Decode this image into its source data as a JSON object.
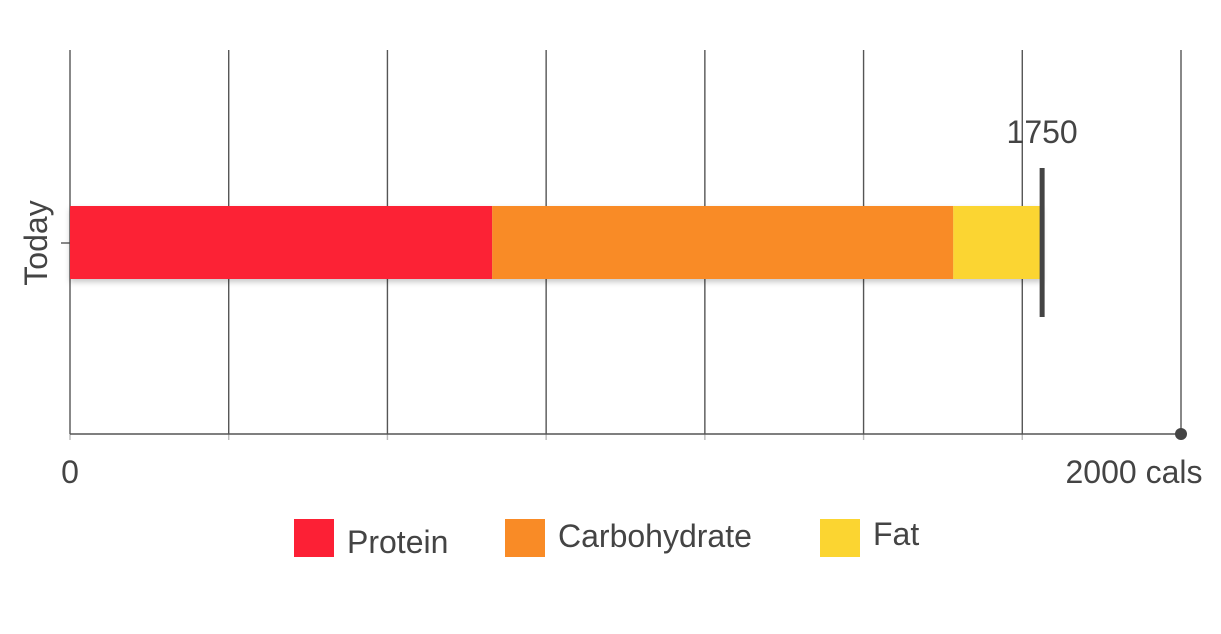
{
  "chart_data": {
    "type": "bar",
    "orientation": "horizontal",
    "stacked": true,
    "categories": [
      "Today"
    ],
    "series": [
      {
        "name": "Protein",
        "color": "#fc2035",
        "values": [
          760
        ]
      },
      {
        "name": "Carbohydrate",
        "color": "#f98b26",
        "values": [
          830
        ]
      },
      {
        "name": "Fat",
        "color": "#fbd531",
        "values": [
          160
        ]
      }
    ],
    "xlim": [
      0,
      2000
    ],
    "x_tick_labels": {
      "start": "0",
      "end": "2000 cals"
    },
    "gridlines": 7,
    "grid": true,
    "total_marker": {
      "value": 1750,
      "label": "1750"
    },
    "legend_position": "bottom-center"
  }
}
